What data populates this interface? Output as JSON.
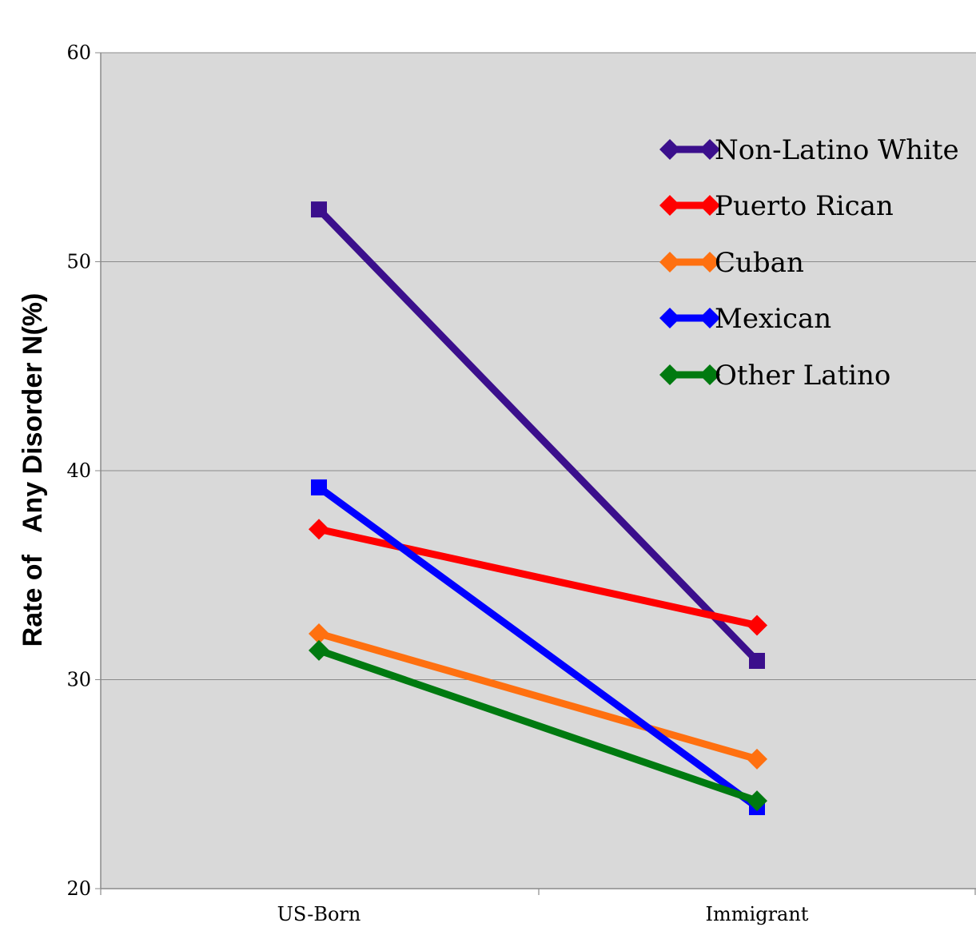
{
  "chart_data": {
    "type": "line",
    "title": "",
    "xlabel": "",
    "ylabel": "Rate of   Any Disorder N(%)",
    "categories": [
      "US-Born",
      "Immigrant"
    ],
    "ylim": [
      20,
      60
    ],
    "yticks": [
      20,
      30,
      40,
      50,
      60
    ],
    "grid": true,
    "legend_position": "top-right",
    "plot_background": "#d9d9d9",
    "series": [
      {
        "name": "Non-Latino White",
        "values": [
          52.5,
          30.9
        ],
        "color": "#3b0f8c",
        "marker": "square"
      },
      {
        "name": "Puerto Rican",
        "values": [
          37.2,
          32.6
        ],
        "color": "#ff0000",
        "marker": "diamond"
      },
      {
        "name": "Cuban",
        "values": [
          32.2,
          26.2
        ],
        "color": "#ff7010",
        "marker": "diamond"
      },
      {
        "name": "Mexican",
        "values": [
          39.2,
          23.9
        ],
        "color": "#0000ff",
        "marker": "square"
      },
      {
        "name": "Other Latino",
        "values": [
          31.4,
          24.2
        ],
        "color": "#007a10",
        "marker": "diamond"
      }
    ]
  }
}
